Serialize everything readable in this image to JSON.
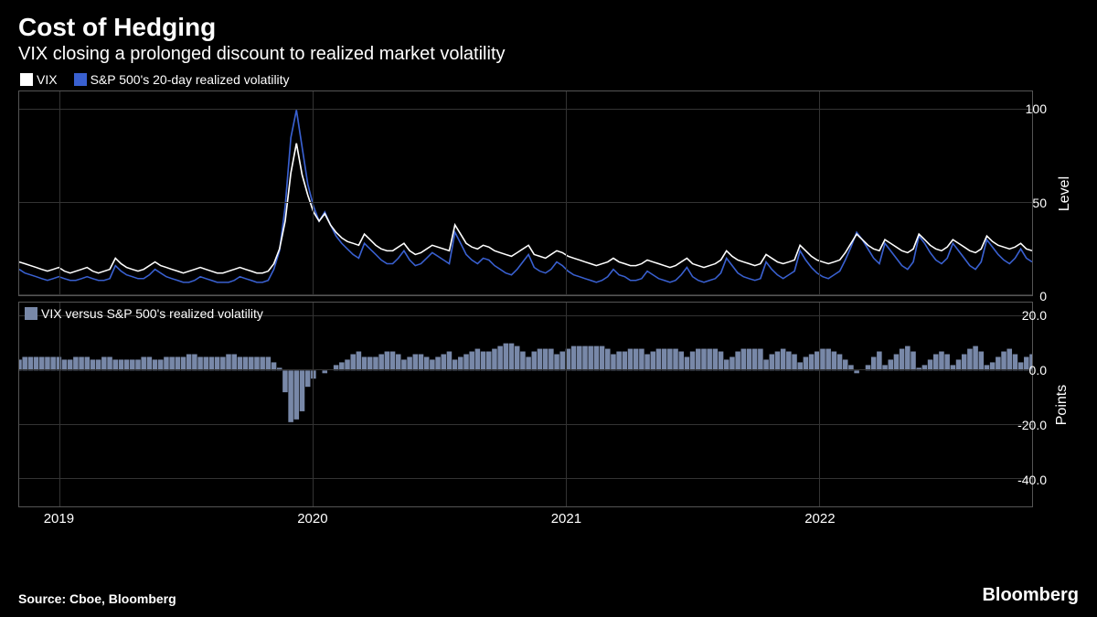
{
  "header": {
    "title": "Cost of Hedging",
    "subtitle": "VIX closing a prolonged discount to realized market volatility"
  },
  "footer": {
    "source": "Source: Cboe, Bloomberg",
    "brand": "Bloomberg"
  },
  "colors": {
    "background": "#000000",
    "text": "#ffffff",
    "grid": "#333333",
    "border": "#555555",
    "vix": "#ffffff",
    "realized": "#3960d0",
    "spread": "#7888a8"
  },
  "x_axis": {
    "years": [
      "2019",
      "2020",
      "2021",
      "2022"
    ],
    "year_positions_pct": [
      4,
      29,
      54,
      79
    ]
  },
  "panel_top": {
    "legend": [
      {
        "label": "VIX",
        "color": "#ffffff"
      },
      {
        "label": "S&P 500's 20-day realized volatility",
        "color": "#3960d0"
      }
    ],
    "ylabel": "Level",
    "ylim": [
      0,
      110
    ],
    "yticks": [
      0,
      50,
      100
    ],
    "vix": [
      18,
      17,
      16,
      15,
      14,
      13,
      14,
      15,
      13,
      12,
      13,
      14,
      15,
      13,
      12,
      13,
      14,
      20,
      17,
      15,
      14,
      13,
      14,
      16,
      18,
      16,
      15,
      14,
      13,
      12,
      13,
      14,
      15,
      14,
      13,
      12,
      12,
      13,
      14,
      15,
      14,
      13,
      12,
      12,
      13,
      17,
      25,
      40,
      66,
      82,
      65,
      54,
      45,
      40,
      44,
      38,
      34,
      31,
      29,
      28,
      27,
      33,
      30,
      27,
      25,
      24,
      24,
      26,
      28,
      24,
      22,
      23,
      25,
      27,
      26,
      25,
      24,
      38,
      33,
      28,
      26,
      25,
      27,
      26,
      24,
      23,
      22,
      21,
      23,
      25,
      27,
      22,
      21,
      20,
      22,
      24,
      23,
      21,
      20,
      19,
      18,
      17,
      16,
      17,
      18,
      20,
      18,
      17,
      16,
      16,
      17,
      19,
      18,
      17,
      16,
      15,
      16,
      18,
      20,
      17,
      16,
      15,
      16,
      17,
      19,
      24,
      21,
      19,
      18,
      17,
      16,
      17,
      22,
      20,
      18,
      17,
      18,
      19,
      27,
      24,
      21,
      19,
      18,
      17,
      18,
      19,
      23,
      28,
      33,
      30,
      27,
      25,
      24,
      30,
      28,
      26,
      24,
      23,
      25,
      33,
      30,
      27,
      25,
      24,
      26,
      30,
      28,
      26,
      24,
      23,
      25,
      32,
      29,
      27,
      26,
      25,
      26,
      28,
      25,
      24
    ],
    "realized": [
      14,
      12,
      11,
      10,
      9,
      8,
      9,
      10,
      9,
      8,
      8,
      9,
      10,
      9,
      8,
      8,
      9,
      16,
      13,
      11,
      10,
      9,
      9,
      11,
      14,
      12,
      10,
      9,
      8,
      7,
      7,
      8,
      10,
      9,
      8,
      7,
      7,
      7,
      8,
      10,
      9,
      8,
      7,
      7,
      8,
      14,
      24,
      48,
      85,
      100,
      80,
      60,
      48,
      40,
      45,
      38,
      32,
      28,
      25,
      22,
      20,
      28,
      25,
      22,
      19,
      17,
      17,
      20,
      24,
      19,
      16,
      17,
      20,
      23,
      21,
      19,
      17,
      34,
      28,
      22,
      19,
      17,
      20,
      19,
      16,
      14,
      12,
      11,
      14,
      18,
      22,
      15,
      13,
      12,
      14,
      18,
      16,
      13,
      11,
      10,
      9,
      8,
      7,
      8,
      10,
      14,
      11,
      10,
      8,
      8,
      9,
      13,
      11,
      9,
      8,
      7,
      8,
      11,
      15,
      10,
      8,
      7,
      8,
      9,
      12,
      20,
      16,
      12,
      10,
      9,
      8,
      9,
      18,
      14,
      11,
      9,
      11,
      13,
      24,
      19,
      15,
      12,
      10,
      9,
      11,
      13,
      19,
      26,
      34,
      30,
      25,
      20,
      17,
      28,
      24,
      20,
      16,
      14,
      18,
      32,
      28,
      23,
      19,
      17,
      20,
      28,
      24,
      20,
      16,
      14,
      18,
      30,
      26,
      22,
      19,
      17,
      20,
      25,
      20,
      18
    ]
  },
  "panel_bottom": {
    "legend": {
      "label": "VIX versus S&P 500's realized volatility",
      "color": "#7888a8"
    },
    "ylabel": "Points",
    "ylim": [
      -50,
      25
    ],
    "yticks": [
      -40.0,
      -20.0,
      0.0,
      20.0
    ],
    "spread": [
      4,
      5,
      5,
      5,
      5,
      5,
      5,
      5,
      4,
      4,
      5,
      5,
      5,
      4,
      4,
      5,
      5,
      4,
      4,
      4,
      4,
      4,
      5,
      5,
      4,
      4,
      5,
      5,
      5,
      5,
      6,
      6,
      5,
      5,
      5,
      5,
      5,
      6,
      6,
      5,
      5,
      5,
      5,
      5,
      5,
      3,
      1,
      -8,
      -19,
      -18,
      -15,
      -6,
      -3,
      0,
      -1,
      0,
      2,
      3,
      4,
      6,
      7,
      5,
      5,
      5,
      6,
      7,
      7,
      6,
      4,
      5,
      6,
      6,
      5,
      4,
      5,
      6,
      7,
      4,
      5,
      6,
      7,
      8,
      7,
      7,
      8,
      9,
      10,
      10,
      9,
      7,
      5,
      7,
      8,
      8,
      8,
      6,
      7,
      8,
      9,
      9,
      9,
      9,
      9,
      9,
      8,
      6,
      7,
      7,
      8,
      8,
      8,
      6,
      7,
      8,
      8,
      8,
      8,
      7,
      5,
      7,
      8,
      8,
      8,
      8,
      7,
      4,
      5,
      7,
      8,
      8,
      8,
      8,
      4,
      6,
      7,
      8,
      7,
      6,
      3,
      5,
      6,
      7,
      8,
      8,
      7,
      6,
      4,
      2,
      -1,
      0,
      2,
      5,
      7,
      2,
      4,
      6,
      8,
      9,
      7,
      1,
      2,
      4,
      6,
      7,
      6,
      2,
      4,
      6,
      8,
      9,
      7,
      2,
      3,
      5,
      7,
      8,
      6,
      3,
      5,
      6
    ]
  }
}
